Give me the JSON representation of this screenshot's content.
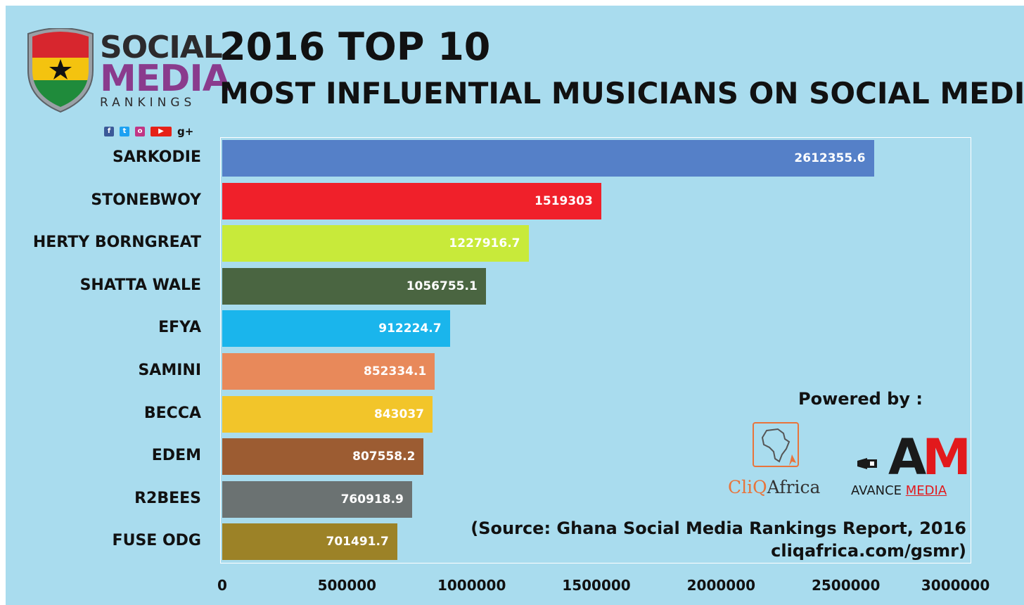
{
  "logo": {
    "line1": "SOCIAL",
    "line2": "MEDIA",
    "line3": "RANKINGS",
    "social_icons": [
      "facebook-icon",
      "twitter-icon",
      "instagram-icon",
      "youtube-icon",
      "google-plus-icon"
    ]
  },
  "title": "2016 TOP 10",
  "subtitle": "MOST INFLUENTIAL MUSICIANS ON SOCIAL MEDIA",
  "powered_by": "Powered by :",
  "sponsors": {
    "cliq_part1": "CliQ",
    "cliq_part2": "Africa",
    "avance_part1": "AVANCE ",
    "avance_part2": "MEDIA",
    "am_a": "A",
    "am_m": "M"
  },
  "source_line1": "(Source: Ghana Social Media Rankings Report, 2016",
  "source_line2": "cliqafrica.com/gsmr)",
  "chart_data": {
    "type": "bar",
    "orientation": "horizontal",
    "categories": [
      "SARKODIE",
      "STONEBWOY",
      "HERTY BORNGREAT",
      "SHATTA WALE",
      "EFYA",
      "SAMINI",
      "BECCA",
      "EDEM",
      "R2BEES",
      "FUSE ODG"
    ],
    "values": [
      2612355.6,
      1519303,
      1227916.7,
      1056755.1,
      912224.7,
      852334.1,
      843037,
      807558.2,
      760918.9,
      701491.7
    ],
    "value_labels": [
      "2612355.6",
      "1519303",
      "1227916.7",
      "1056755.1",
      "912224.7",
      "852334.1",
      "843037",
      "807558.2",
      "760918.9",
      "701491.7"
    ],
    "colors": [
      "#5580c8",
      "#f0202a",
      "#c8ea3a",
      "#4a6541",
      "#1ab5ec",
      "#e8895a",
      "#f2c52a",
      "#9c5c32",
      "#6b7272",
      "#9c8227"
    ],
    "xlim": [
      0,
      3000000
    ],
    "xticks": [
      0,
      500000,
      1000000,
      1500000,
      2000000,
      2500000,
      3000000
    ],
    "xtick_labels": [
      "0",
      "500000",
      "1000000",
      "1500000",
      "2000000",
      "2500000",
      "3000000"
    ],
    "grid": false
  }
}
